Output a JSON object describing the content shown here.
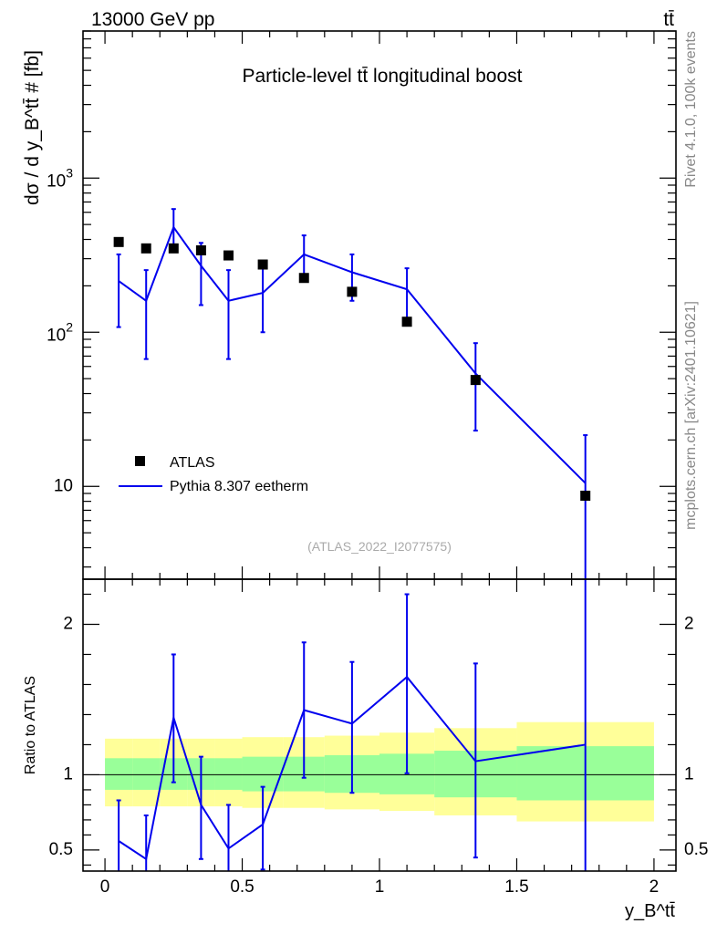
{
  "header": {
    "energy_label": "13000 GeV pp",
    "process_label": "tt̄"
  },
  "side_text": {
    "rivet": "Rivet 4.1.0,  100k events",
    "mcplots": "mcplots.cern.ch [arXiv:2401.10621]"
  },
  "chart_data": [
    {
      "type": "scatter",
      "title": "Particle-level tt̄ longitudinal boost",
      "analysis_id": "(ATLAS_2022_I2077575)",
      "xlabel": "y_B^tt̄",
      "ylabel": "dσ / d y_B^tt̄ # [fb]",
      "yscale": "log",
      "xlim": [
        -0.08,
        2.08
      ],
      "ylim": [
        2.5,
        9000
      ],
      "y_tick_labels": [
        "10",
        "10^2",
        "10^3"
      ],
      "legend_position": "lower-left",
      "series": [
        {
          "name": "ATLAS",
          "style": "markers",
          "color": "#000000",
          "x": [
            0.05,
            0.15,
            0.25,
            0.35,
            0.45,
            0.575,
            0.725,
            0.9,
            1.1,
            1.35,
            1.75
          ],
          "y": [
            385,
            350,
            350,
            340,
            315,
            275,
            225,
            183,
            117,
            49,
            8.7
          ]
        },
        {
          "name": "Pythia 8.307 eetherm",
          "style": "line",
          "color": "#0000ee",
          "x": [
            0.05,
            0.15,
            0.25,
            0.35,
            0.45,
            0.575,
            0.725,
            0.9,
            1.1,
            1.35,
            1.75
          ],
          "y": [
            215,
            160,
            480,
            270,
            160,
            180,
            320,
            245,
            190,
            54,
            10.5
          ],
          "err_low": [
            108,
            67,
            335,
            150,
            67,
            100,
            225,
            160,
            118,
            23,
            1.0
          ],
          "err_high": [
            320,
            253,
            630,
            380,
            253,
            260,
            425,
            320,
            260,
            85,
            21.5
          ]
        }
      ]
    },
    {
      "type": "line",
      "ylabel": "Ratio to ATLAS",
      "xlim": [
        -0.08,
        2.08
      ],
      "ylim": [
        0.36,
        2.3
      ],
      "x_ticks": [
        0,
        0.5,
        1,
        1.5,
        2
      ],
      "x_tick_labels": [
        "0",
        "0.5",
        "1",
        "1.5",
        "2"
      ],
      "y_ticks": [
        0.5,
        1,
        2
      ],
      "y_tick_labels": [
        "0.5",
        "1",
        "2"
      ],
      "reference_line": 1,
      "bands": {
        "bin_edges": [
          0,
          0.1,
          0.2,
          0.3,
          0.4,
          0.5,
          0.65,
          0.8,
          1.0,
          1.2,
          1.5,
          2.0
        ],
        "inner_color": "#99ff99",
        "inner_low": [
          0.9,
          0.9,
          0.9,
          0.9,
          0.9,
          0.89,
          0.89,
          0.88,
          0.87,
          0.85,
          0.83
        ],
        "inner_high": [
          1.11,
          1.11,
          1.11,
          1.11,
          1.11,
          1.12,
          1.12,
          1.13,
          1.14,
          1.16,
          1.19
        ],
        "outer_color": "#ffff99",
        "outer_low": [
          0.79,
          0.79,
          0.79,
          0.79,
          0.79,
          0.78,
          0.78,
          0.77,
          0.76,
          0.73,
          0.69
        ],
        "outer_high": [
          1.24,
          1.24,
          1.24,
          1.24,
          1.24,
          1.25,
          1.25,
          1.26,
          1.28,
          1.31,
          1.35
        ]
      },
      "series": [
        {
          "name": "Pythia 8.307 eetherm / ATLAS",
          "color": "#0000ee",
          "x": [
            0.05,
            0.15,
            0.25,
            0.35,
            0.45,
            0.575,
            0.725,
            0.9,
            1.1,
            1.35,
            1.75
          ],
          "y": [
            0.56,
            0.44,
            1.38,
            0.8,
            0.51,
            0.67,
            1.43,
            1.34,
            1.65,
            1.09,
            1.2
          ],
          "err_low": [
            0.28,
            0.19,
            0.95,
            0.44,
            0.21,
            0.37,
            0.98,
            0.88,
            1.01,
            0.45,
            0.11
          ],
          "err_high": [
            0.83,
            0.73,
            1.8,
            1.12,
            0.8,
            0.92,
            1.88,
            1.75,
            2.2,
            1.74,
            2.47
          ]
        }
      ]
    }
  ]
}
